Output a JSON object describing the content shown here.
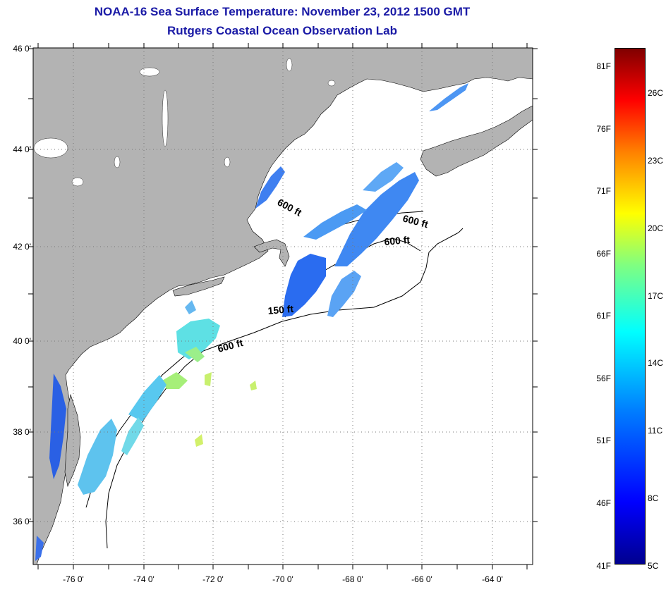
{
  "title": "NOAA-16 Sea Surface Temperature:  November 23, 2012 1500 GMT",
  "subtitle": "Rutgers Coastal Ocean Observation Lab",
  "lat_labels": [
    "46 0'",
    "44 0'",
    "42 0'",
    "40 0'",
    "38 0'",
    "36 0'"
  ],
  "lon_labels": [
    "-76 0'",
    "-74 0'",
    "-72 0'",
    "-70 0'",
    "-68 0'",
    "-66 0'",
    "-64 0'"
  ],
  "contour_labels": [
    "600 ft",
    "600 ft",
    "600 ft",
    "150 ft",
    "600 ft"
  ],
  "colorbar": {
    "fahrenheit": [
      "81F",
      "76F",
      "71F",
      "66F",
      "61F",
      "56F",
      "51F",
      "46F",
      "41F"
    ],
    "celsius": [
      "26C",
      "23C",
      "20C",
      "17C",
      "14C",
      "11C",
      "8C",
      "5C"
    ]
  },
  "colors": {
    "land": "#b3b3b3",
    "ocean": "#ffffff",
    "title": "#1a1aa6",
    "grid": "#777777"
  }
}
